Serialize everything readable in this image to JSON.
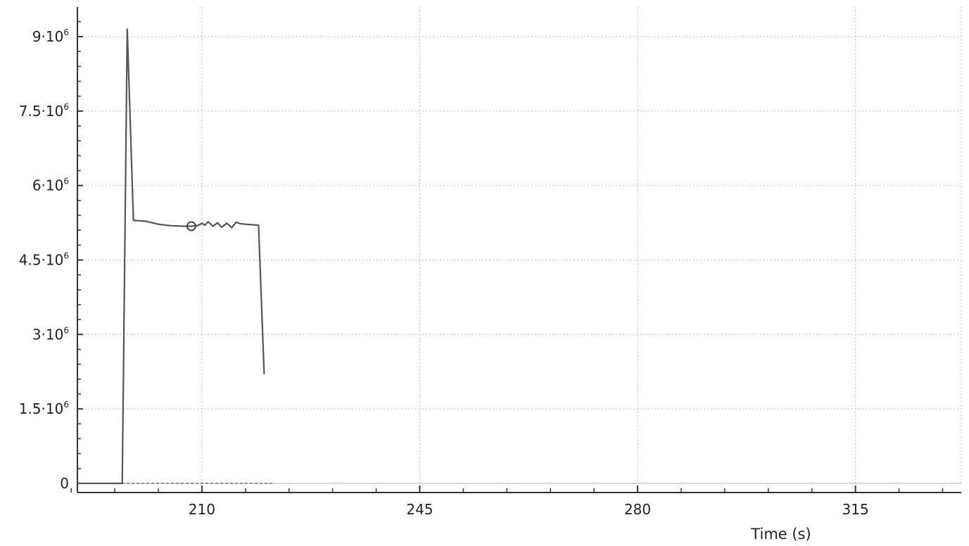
{
  "chart_data": {
    "type": "line",
    "title": "",
    "xlabel": "Time (s)",
    "ylabel": "",
    "xlim": [
      190,
      332
    ],
    "ylim": [
      -50000,
      9500000
    ],
    "grid": true,
    "x_ticks": [
      210,
      245,
      280,
      315
    ],
    "y_ticks": [
      {
        "value": 0,
        "mantissa": "0",
        "exp": ""
      },
      {
        "value": 1500000,
        "mantissa": "1.5·10",
        "exp": "6"
      },
      {
        "value": 3000000,
        "mantissa": "3·10",
        "exp": "6"
      },
      {
        "value": 4500000,
        "mantissa": "4.5·10",
        "exp": "6"
      },
      {
        "value": 6000000,
        "mantissa": "6·10",
        "exp": "6"
      },
      {
        "value": 7500000,
        "mantissa": "7.5·10",
        "exp": "6"
      },
      {
        "value": 9000000,
        "mantissa": "9·10",
        "exp": "6"
      }
    ],
    "series": [
      {
        "color": "#555555",
        "points": [
          [
            190,
            0
          ],
          [
            197.2,
            0
          ],
          [
            198.0,
            9150000
          ],
          [
            199.0,
            5300000
          ],
          [
            201.0,
            5280000
          ],
          [
            203.0,
            5220000
          ],
          [
            205.0,
            5190000
          ],
          [
            207.0,
            5180000
          ],
          [
            208.3,
            5180000
          ],
          [
            209.5,
            5200000
          ],
          [
            210.0,
            5240000
          ],
          [
            210.5,
            5200000
          ],
          [
            211.0,
            5270000
          ],
          [
            211.8,
            5180000
          ],
          [
            212.5,
            5250000
          ],
          [
            213.2,
            5160000
          ],
          [
            214.0,
            5240000
          ],
          [
            214.8,
            5150000
          ],
          [
            215.5,
            5260000
          ],
          [
            216.2,
            5230000
          ],
          [
            217.0,
            5220000
          ],
          [
            218.0,
            5210000
          ],
          [
            219.1,
            5200000
          ],
          [
            220.0,
            2200000
          ]
        ],
        "marker": {
          "x": 208.3,
          "y": 5180000
        }
      }
    ],
    "reference_line": {
      "y": 0,
      "x_start": 190,
      "x_end": 221.5,
      "style": "dashed"
    }
  }
}
